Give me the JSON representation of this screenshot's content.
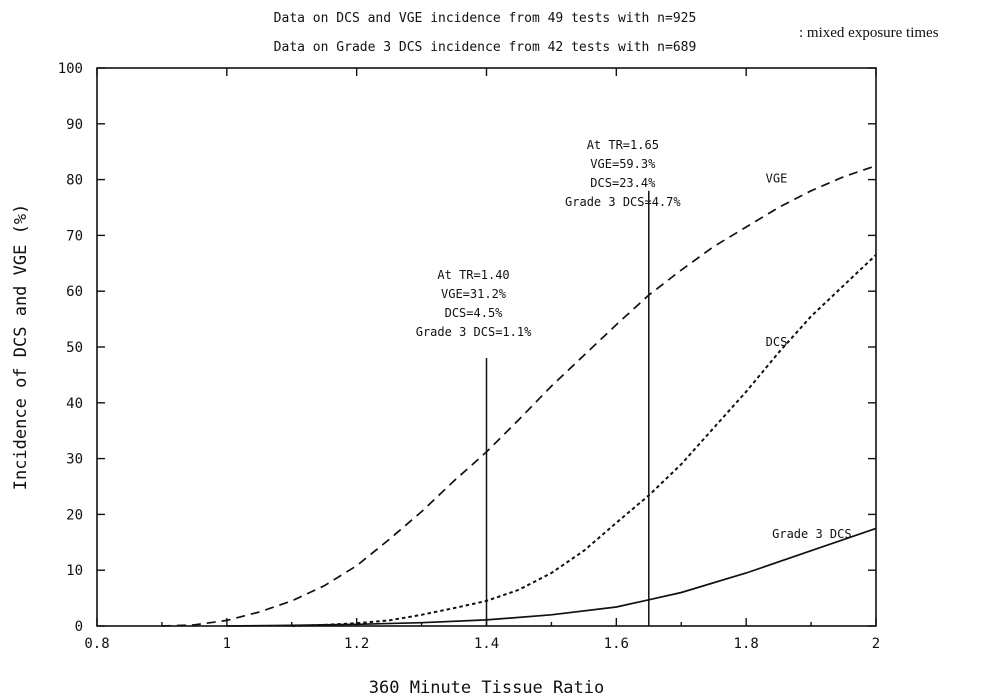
{
  "chart_data": {
    "type": "line",
    "title_lines": [
      "Data on DCS and VGE incidence from 49 tests with n=925",
      "Data on Grade 3 DCS incidence from 42 tests with n=689"
    ],
    "title_note": ": mixed exposure times",
    "xlabel": "360 Minute Tissue Ratio",
    "ylabel": "Incidence of DCS and VGE (%)",
    "xlim": [
      0.8,
      2.0
    ],
    "ylim": [
      0,
      100
    ],
    "x_ticks": [
      0.8,
      1,
      1.2,
      1.4,
      1.6,
      1.8,
      2
    ],
    "x_tick_labels": [
      "0.8",
      "1",
      "1.2",
      "1.4",
      "1.6",
      "1.8",
      "2"
    ],
    "y_ticks": [
      0,
      10,
      20,
      30,
      40,
      50,
      60,
      70,
      80,
      90,
      100
    ],
    "y_tick_labels": [
      "0",
      "10",
      "20",
      "30",
      "40",
      "50",
      "60",
      "70",
      "80",
      "90",
      "100"
    ],
    "grid": false,
    "series": [
      {
        "name": "VGE",
        "style": "dashed",
        "x": [
          0.9,
          0.95,
          1.0,
          1.05,
          1.1,
          1.15,
          1.2,
          1.25,
          1.3,
          1.35,
          1.4,
          1.45,
          1.5,
          1.55,
          1.6,
          1.65,
          1.7,
          1.75,
          1.8,
          1.85,
          1.9,
          1.95,
          2.0
        ],
        "y": [
          0,
          0.2,
          1,
          2.5,
          4.5,
          7.2,
          10.8,
          15.5,
          20.5,
          26,
          31.2,
          37,
          43,
          48.5,
          54,
          59.3,
          63.8,
          68,
          71.5,
          75,
          78,
          80.5,
          82.5
        ]
      },
      {
        "name": "DCS",
        "style": "dotted",
        "x": [
          1.1,
          1.15,
          1.2,
          1.25,
          1.3,
          1.35,
          1.4,
          1.45,
          1.5,
          1.55,
          1.6,
          1.65,
          1.7,
          1.75,
          1.8,
          1.85,
          1.9,
          1.95,
          2.0
        ],
        "y": [
          0,
          0.2,
          0.5,
          1,
          2,
          3.2,
          4.5,
          6.5,
          9.5,
          13.5,
          18.5,
          23.4,
          29,
          35.5,
          42,
          49,
          55.5,
          61,
          66.5
        ]
      },
      {
        "name": "Grade 3 DCS",
        "style": "solid",
        "x": [
          1.0,
          1.1,
          1.2,
          1.3,
          1.4,
          1.5,
          1.6,
          1.65,
          1.7,
          1.8,
          1.9,
          2.0
        ],
        "y": [
          0,
          0.1,
          0.3,
          0.6,
          1.1,
          2,
          3.4,
          4.7,
          6,
          9.5,
          13.5,
          17.5
        ]
      }
    ],
    "series_labels": [
      {
        "text": "VGE",
        "x": 1.83,
        "y": 79.5
      },
      {
        "text": "DCS",
        "x": 1.83,
        "y": 50.2
      },
      {
        "text": "Grade 3 DCS",
        "x": 1.84,
        "y": 15.8
      }
    ],
    "markers": [
      {
        "x": 1.4,
        "y_top": 48,
        "lines": [
          "At TR=1.40",
          "VGE=31.2%",
          "DCS=4.5%",
          "Grade 3 DCS=1.1%"
        ],
        "anchor_x": 1.38,
        "first_line_y": 62.2
      },
      {
        "x": 1.65,
        "y_top": 78,
        "lines": [
          "At TR=1.65",
          "VGE=59.3%",
          "DCS=23.4%",
          "Grade 3 DCS=4.7%"
        ],
        "anchor_x": 1.61,
        "first_line_y": 85.5
      }
    ]
  }
}
